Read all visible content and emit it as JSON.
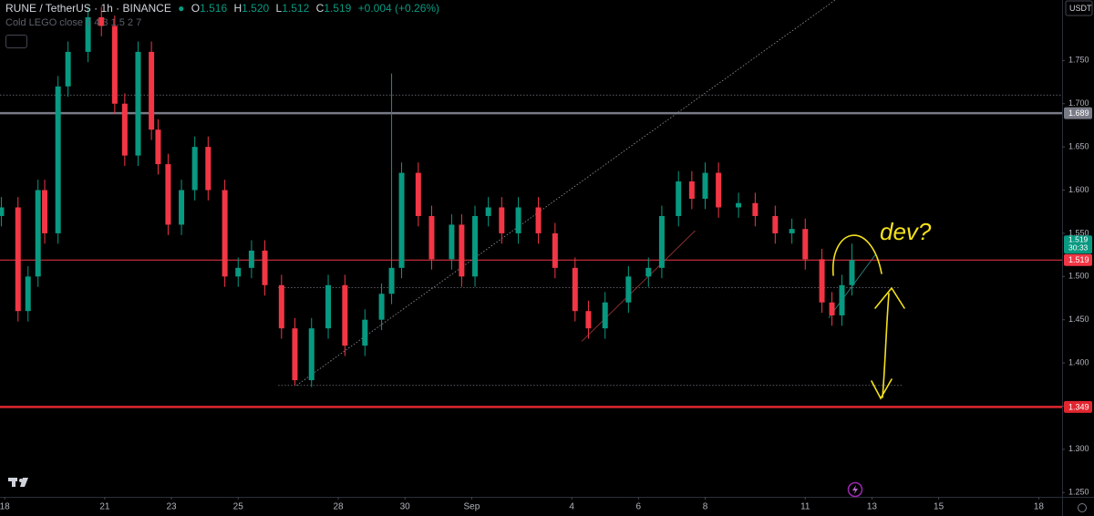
{
  "header": {
    "symbol": "RUNE / TetherUS · 1h · BINANCE",
    "ohlc": [
      {
        "key": "O",
        "value": "1.516"
      },
      {
        "key": "H",
        "value": "1.520"
      },
      {
        "key": "L",
        "value": "1.512"
      },
      {
        "key": "C",
        "value": "1.519"
      }
    ],
    "change": "+0.004 (+0.26%)",
    "indicator": "Cold LEGO close 7 4 3 1.5 2 7",
    "currency": "USDT"
  },
  "annotation": "dev?",
  "countdown": "30:33",
  "chart_data": {
    "type": "candlestick",
    "up_color": "#089981",
    "down_color": "#f23645",
    "xlim": [
      -0.14,
      31.7
    ],
    "ylim": [
      1.245,
      1.82
    ],
    "xticks": [
      {
        "value": 0,
        "label": "18"
      },
      {
        "value": 3,
        "label": "21"
      },
      {
        "value": 5,
        "label": "23"
      },
      {
        "value": 7,
        "label": "25"
      },
      {
        "value": 10,
        "label": "28"
      },
      {
        "value": 12,
        "label": "30"
      },
      {
        "value": 14,
        "label": "Sep"
      },
      {
        "value": 17,
        "label": "4"
      },
      {
        "value": 19,
        "label": "6"
      },
      {
        "value": 21,
        "label": "8"
      },
      {
        "value": 24,
        "label": "11"
      },
      {
        "value": 26,
        "label": "13"
      },
      {
        "value": 28,
        "label": "15"
      },
      {
        "value": 31,
        "label": "18"
      }
    ],
    "yticks": [
      {
        "value": 1.25,
        "label": "1.250"
      },
      {
        "value": 1.3,
        "label": "1.300"
      },
      {
        "value": 1.35,
        "label": "1.350"
      },
      {
        "value": 1.4,
        "label": "1.400"
      },
      {
        "value": 1.45,
        "label": "1.450"
      },
      {
        "value": 1.5,
        "label": "1.500"
      },
      {
        "value": 1.55,
        "label": "1.550"
      },
      {
        "value": 1.6,
        "label": "1.600"
      },
      {
        "value": 1.65,
        "label": "1.650"
      },
      {
        "value": 1.7,
        "label": "1.700"
      },
      {
        "value": 1.75,
        "label": "1.750"
      }
    ],
    "x": [
      -0.1,
      0.4,
      0.7,
      1.0,
      1.2,
      1.6,
      1.9,
      2.5,
      2.9,
      3.3,
      3.6,
      4.0,
      4.4,
      4.6,
      4.9,
      5.3,
      5.7,
      6.1,
      6.6,
      7.0,
      7.4,
      7.8,
      8.3,
      8.7,
      9.2,
      9.7,
      10.2,
      10.8,
      11.3,
      11.6,
      11.9,
      12.4,
      12.8,
      13.4,
      13.7,
      14.1,
      14.5,
      14.9,
      15.4,
      16.0,
      16.5,
      17.1,
      17.5,
      18.0,
      18.7,
      19.3,
      19.7,
      20.2,
      20.6,
      21.0,
      21.4,
      22.0,
      22.5,
      23.1,
      23.6,
      24.0,
      24.5,
      24.8,
      25.1,
      25.4
    ],
    "open": [
      1.57,
      1.58,
      1.46,
      1.5,
      1.6,
      1.55,
      1.72,
      1.76,
      1.8,
      1.79,
      1.7,
      1.64,
      1.76,
      1.67,
      1.63,
      1.56,
      1.6,
      1.65,
      1.6,
      1.5,
      1.51,
      1.53,
      1.49,
      1.44,
      1.38,
      1.44,
      1.49,
      1.42,
      1.45,
      1.48,
      1.51,
      1.62,
      1.57,
      1.52,
      1.56,
      1.5,
      1.57,
      1.58,
      1.55,
      1.58,
      1.55,
      1.51,
      1.46,
      1.44,
      1.47,
      1.5,
      1.51,
      1.57,
      1.61,
      1.59,
      1.62,
      1.58,
      1.585,
      1.57,
      1.55,
      1.555,
      1.52,
      1.47,
      1.455,
      1.49
    ],
    "high": [
      1.592,
      1.592,
      1.512,
      1.612,
      1.612,
      1.732,
      1.772,
      1.812,
      1.812,
      1.802,
      1.712,
      1.772,
      1.772,
      1.682,
      1.642,
      1.612,
      1.662,
      1.662,
      1.612,
      1.522,
      1.542,
      1.542,
      1.502,
      1.452,
      1.452,
      1.502,
      1.502,
      1.462,
      1.492,
      1.735,
      1.632,
      1.632,
      1.582,
      1.572,
      1.572,
      1.582,
      1.592,
      1.592,
      1.592,
      1.592,
      1.562,
      1.522,
      1.472,
      1.482,
      1.512,
      1.522,
      1.582,
      1.622,
      1.622,
      1.632,
      1.632,
      1.597,
      1.597,
      1.582,
      1.567,
      1.567,
      1.532,
      1.482,
      1.502,
      1.538
    ],
    "low": [
      1.558,
      1.448,
      1.448,
      1.488,
      1.538,
      1.538,
      1.708,
      1.748,
      1.778,
      1.688,
      1.628,
      1.628,
      1.658,
      1.618,
      1.548,
      1.548,
      1.588,
      1.588,
      1.488,
      1.488,
      1.498,
      1.478,
      1.428,
      1.374,
      1.372,
      1.428,
      1.408,
      1.408,
      1.438,
      1.468,
      1.498,
      1.558,
      1.508,
      1.508,
      1.488,
      1.488,
      1.558,
      1.538,
      1.538,
      1.538,
      1.498,
      1.448,
      1.428,
      1.428,
      1.458,
      1.488,
      1.498,
      1.558,
      1.578,
      1.578,
      1.568,
      1.568,
      1.558,
      1.538,
      1.538,
      1.508,
      1.458,
      1.443,
      1.443,
      1.478
    ],
    "close": [
      1.58,
      1.46,
      1.5,
      1.6,
      1.55,
      1.72,
      1.76,
      1.8,
      1.79,
      1.7,
      1.64,
      1.76,
      1.67,
      1.63,
      1.56,
      1.6,
      1.65,
      1.6,
      1.5,
      1.51,
      1.53,
      1.49,
      1.44,
      1.38,
      1.44,
      1.49,
      1.42,
      1.45,
      1.48,
      1.51,
      1.62,
      1.57,
      1.52,
      1.56,
      1.5,
      1.57,
      1.58,
      1.55,
      1.58,
      1.55,
      1.51,
      1.46,
      1.44,
      1.47,
      1.5,
      1.51,
      1.57,
      1.61,
      1.59,
      1.62,
      1.58,
      1.585,
      1.57,
      1.55,
      1.555,
      1.52,
      1.47,
      1.455,
      1.49,
      1.519
    ],
    "price_lines": [
      {
        "value": 1.689,
        "color": "#787b86"
      },
      {
        "value": 1.519,
        "color": "#f23645"
      },
      {
        "value": 1.349,
        "color": "#e0262f"
      }
    ],
    "levels": [
      1.71,
      1.487,
      1.374
    ],
    "trendlines": [
      {
        "x": [
          8.75,
          24.9
        ],
        "y": [
          1.374,
          1.82
        ],
        "color": "#9598a1"
      },
      {
        "x": [
          17.3,
          20.7
        ],
        "y": [
          1.425,
          1.553
        ],
        "color": "#a83a3a"
      },
      {
        "x": [
          24.7,
          26.1
        ],
        "y": [
          1.452,
          1.525
        ],
        "color": "#2f8f87"
      }
    ]
  }
}
